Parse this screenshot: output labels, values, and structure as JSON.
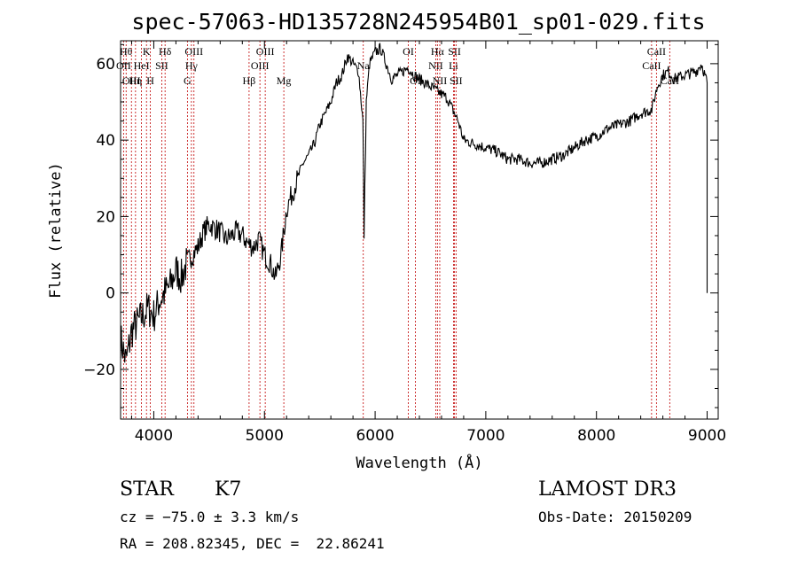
{
  "chart_data": {
    "type": "line",
    "title": "spec-57063-HD135728N245954B01_sp01-029.fits",
    "xlabel": "Wavelength (Å)",
    "ylabel": "Flux (relative)",
    "xlim": [
      3700,
      9100
    ],
    "ylim": [
      -33,
      66
    ],
    "xticks": [
      4000,
      5000,
      6000,
      7000,
      8000,
      9000
    ],
    "yticks": [
      -20,
      0,
      20,
      40,
      60
    ],
    "grid": false,
    "series": [
      {
        "x": [
          3700,
          3750,
          3800,
          3850,
          3900,
          3950,
          4000,
          4050,
          4100,
          4150,
          4200,
          4250,
          4300,
          4350,
          4400,
          4450,
          4500,
          4550,
          4600,
          4650,
          4700,
          4750,
          4800,
          4850,
          4900,
          4950,
          5000,
          5050,
          5100,
          5150,
          5200,
          5250,
          5300,
          5350,
          5400,
          5450,
          5500,
          5550,
          5600,
          5650,
          5700,
          5750,
          5800,
          5850,
          5890,
          5900,
          5920,
          5950,
          6000,
          6050,
          6100,
          6150,
          6200,
          6250,
          6300,
          6350,
          6400,
          6450,
          6500,
          6550,
          6600,
          6650,
          6700,
          6750,
          6800,
          6900,
          7000,
          7100,
          7200,
          7300,
          7400,
          7500,
          7600,
          7700,
          7800,
          7900,
          8000,
          8100,
          8200,
          8300,
          8400,
          8500,
          8550,
          8600,
          8650,
          8700,
          8800,
          8900,
          8950,
          9000
        ],
        "y": [
          -12,
          -18,
          -10,
          -8,
          -6,
          -4,
          -6,
          -2,
          0,
          2,
          6,
          4,
          8,
          10,
          12,
          16,
          18,
          17,
          16,
          14,
          15,
          16,
          15,
          13,
          12,
          14,
          10,
          8,
          4,
          10,
          22,
          26,
          30,
          34,
          36,
          39,
          44,
          47,
          50,
          55,
          57,
          62,
          60,
          58,
          45,
          15,
          50,
          60,
          63,
          64,
          60,
          56,
          57,
          58,
          59,
          57,
          56,
          55,
          54,
          53,
          52,
          51,
          48,
          45,
          40,
          39,
          38,
          37,
          35,
          35,
          34,
          34,
          35,
          36,
          38,
          40,
          41,
          43,
          44,
          45,
          47,
          48,
          54,
          57,
          58,
          56,
          57,
          58,
          60,
          55
        ]
      }
    ],
    "lines": [
      {
        "wl": 3727,
        "label": "OII",
        "row": 2
      },
      {
        "wl": 3750,
        "label": "Hθ",
        "row": 1
      },
      {
        "wl": 3798,
        "label": "OIII",
        "row": 3
      },
      {
        "wl": 3835,
        "label": "Hη",
        "row": 3
      },
      {
        "wl": 3889,
        "label": "HeI",
        "row": 2
      },
      {
        "wl": 3934,
        "label": "K",
        "row": 1
      },
      {
        "wl": 3969,
        "label": "H",
        "row": 3
      },
      {
        "wl": 4072,
        "label": "SII",
        "row": 2
      },
      {
        "wl": 4102,
        "label": "Hδ",
        "row": 1
      },
      {
        "wl": 4304,
        "label": "G",
        "row": 3
      },
      {
        "wl": 4340,
        "label": "Hγ",
        "row": 2
      },
      {
        "wl": 4363,
        "label": "OIII",
        "row": 1
      },
      {
        "wl": 4861,
        "label": "Hβ",
        "row": 3
      },
      {
        "wl": 4959,
        "label": "OIII",
        "row": 2
      },
      {
        "wl": 5007,
        "label": "OIII",
        "row": 1
      },
      {
        "wl": 5175,
        "label": "Mg",
        "row": 3
      },
      {
        "wl": 5893,
        "label": "Na",
        "row": 2
      },
      {
        "wl": 6300,
        "label": "OI",
        "row": 1
      },
      {
        "wl": 6364,
        "label": "OI",
        "row": 3
      },
      {
        "wl": 6548,
        "label": "NII",
        "row": 2
      },
      {
        "wl": 6563,
        "label": "Hα",
        "row": 1
      },
      {
        "wl": 6584,
        "label": "NII",
        "row": 3
      },
      {
        "wl": 6708,
        "label": "Li",
        "row": 2
      },
      {
        "wl": 6717,
        "label": "SII",
        "row": 1
      },
      {
        "wl": 6731,
        "label": "SII",
        "row": 3
      },
      {
        "wl": 8498,
        "label": "CaII",
        "row": 2
      },
      {
        "wl": 8542,
        "label": "CaII",
        "row": 1
      },
      {
        "wl": 8662,
        "label": "CaII",
        "row": 3
      }
    ]
  },
  "info": {
    "object_class": "STAR",
    "subclass": "K7",
    "survey": "LAMOST DR3",
    "cz": "cz = −75.0 ± 3.3 km/s",
    "obs_date": "Obs-Date: 20150209",
    "coords": "RA = 208.82345, DEC =  22.86241"
  }
}
